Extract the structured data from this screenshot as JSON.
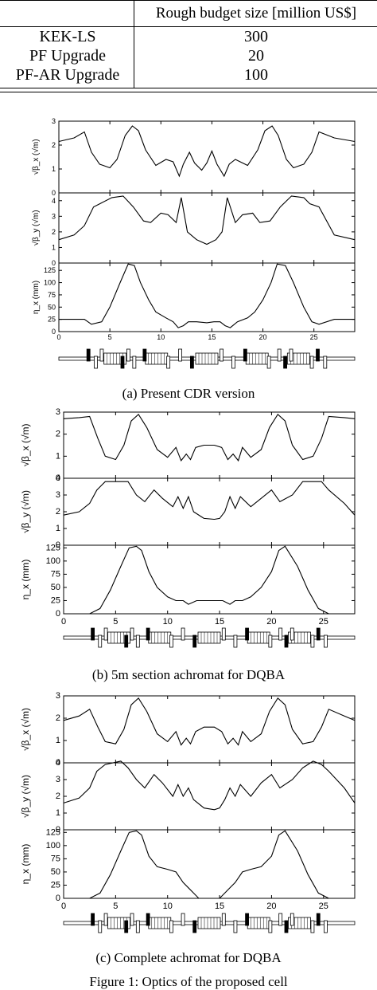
{
  "table": {
    "header": "Rough budget size [million US$]",
    "rows": [
      {
        "name": "KEK-LS",
        "value": "300"
      },
      {
        "name": "PF Upgrade",
        "value": "20"
      },
      {
        "name": "PF-AR Upgrade",
        "value": "100"
      }
    ]
  },
  "captions": {
    "a": "(a) Present CDR version",
    "b": "(b) 5m section achromat for DQBA",
    "c": "(c) Complete achromat for DQBA",
    "figure": "Figure 1: Optics of the proposed cell"
  },
  "chart_data": [
    {
      "id": "a",
      "type": "line",
      "title": "(a) Present CDR version",
      "xlabel": "",
      "xlim": [
        0,
        29
      ],
      "xticks": [
        0,
        5,
        10,
        15,
        20,
        25
      ],
      "panels": [
        {
          "ylabel": "√β_x (√m)",
          "ylim": [
            0,
            3
          ],
          "yticks": [
            0,
            1,
            2,
            3
          ],
          "x": [
            0,
            1.5,
            2.5,
            3.2,
            4,
            5,
            5.7,
            6.5,
            7.2,
            7.8,
            8.5,
            9.5,
            10.5,
            11.2,
            11.8,
            12.2,
            12.8,
            13.3,
            14,
            14.5,
            15,
            15.5,
            16.2,
            16.7,
            17.3,
            18.5,
            19.5,
            20.2,
            20.9,
            21.5,
            22.3,
            23,
            24,
            24.8,
            25.5,
            27,
            29
          ],
          "y": [
            2.15,
            2.3,
            2.55,
            1.7,
            1.2,
            1.05,
            1.4,
            2.4,
            2.8,
            2.6,
            1.8,
            1.15,
            1.4,
            1.3,
            0.7,
            1.2,
            1.7,
            1.25,
            0.95,
            1.25,
            1.75,
            1.2,
            0.7,
            1.2,
            1.4,
            1.15,
            1.8,
            2.6,
            2.8,
            2.4,
            1.4,
            1.05,
            1.2,
            1.7,
            2.55,
            2.3,
            2.15
          ]
        },
        {
          "ylabel": "√β_y (√m)",
          "ylim": [
            0,
            4.5
          ],
          "yticks": [
            0,
            1,
            2,
            3,
            4
          ],
          "x": [
            0,
            1.5,
            2.5,
            3.4,
            4,
            5.2,
            6.3,
            7.3,
            8.3,
            9,
            10,
            10.7,
            11.5,
            12,
            12.6,
            13.5,
            14.5,
            15.4,
            16,
            16.5,
            17.3,
            18,
            19,
            19.7,
            20.7,
            21.7,
            22.8,
            24,
            24.6,
            25.5,
            27,
            29
          ],
          "y": [
            1.5,
            1.8,
            2.4,
            3.6,
            3.8,
            4.2,
            4.3,
            3.6,
            2.7,
            2.6,
            3.2,
            3.1,
            2.6,
            4.2,
            2.0,
            1.5,
            1.2,
            1.5,
            2.0,
            4.2,
            2.6,
            3.1,
            3.2,
            2.6,
            2.7,
            3.6,
            4.3,
            4.2,
            3.8,
            3.6,
            1.8,
            1.5
          ]
        },
        {
          "ylabel": "η_x (mm)",
          "ylim": [
            0,
            140
          ],
          "yticks": [
            0,
            25,
            50,
            75,
            100,
            125
          ],
          "x": [
            0,
            2.5,
            3.2,
            4.2,
            5,
            6,
            6.8,
            7.4,
            8,
            8.8,
            9.5,
            10.5,
            11.2,
            11.7,
            12.2,
            12.7,
            13.5,
            14.5,
            15.2,
            15.8,
            16.3,
            16.8,
            17.5,
            18.5,
            19.2,
            20,
            20.8,
            21.4,
            22.2,
            23,
            24,
            24.8,
            25.5,
            27,
            29
          ],
          "y": [
            25,
            25,
            15,
            20,
            50,
            100,
            138,
            135,
            100,
            65,
            40,
            28,
            20,
            8,
            12,
            20,
            20,
            18,
            20,
            20,
            12,
            8,
            20,
            28,
            40,
            65,
            100,
            138,
            135,
            100,
            50,
            20,
            15,
            25,
            25
          ]
        }
      ]
    },
    {
      "id": "b",
      "type": "line",
      "title": "(b) 5m section achromat for DQBA",
      "xlabel": "",
      "xlim": [
        0,
        28
      ],
      "xticks": [
        0,
        5,
        10,
        15,
        20,
        25
      ],
      "panels": [
        {
          "ylabel": "√β_x (√m)",
          "ylim": [
            0,
            3
          ],
          "yticks": [
            0,
            1,
            2,
            3
          ],
          "x": [
            0,
            1.5,
            2.5,
            3.3,
            4,
            5,
            5.8,
            6.5,
            7.2,
            8,
            9,
            10,
            10.8,
            11.3,
            11.8,
            12.2,
            12.7,
            13.5,
            14.5,
            15.2,
            15.8,
            16.3,
            16.8,
            17.2,
            18,
            19,
            19.8,
            20.6,
            21.3,
            22,
            23,
            24,
            24.8,
            25.5,
            27,
            28
          ],
          "y": [
            2.7,
            2.75,
            2.8,
            1.8,
            1.0,
            0.85,
            1.5,
            2.6,
            2.9,
            2.3,
            1.3,
            0.95,
            1.4,
            0.8,
            1.1,
            0.85,
            1.4,
            1.5,
            1.5,
            1.4,
            0.85,
            1.1,
            0.8,
            1.4,
            0.95,
            1.3,
            2.3,
            2.9,
            2.6,
            1.5,
            0.85,
            1.0,
            1.8,
            2.8,
            2.75,
            2.7
          ]
        },
        {
          "ylabel": "√β_y (√m)",
          "ylim": [
            0,
            4
          ],
          "yticks": [
            0,
            1,
            2,
            3,
            4
          ],
          "x": [
            0,
            1.5,
            2.5,
            3.2,
            4,
            5.5,
            6.2,
            7,
            7.8,
            8.7,
            9.5,
            10.5,
            11,
            11.5,
            12,
            12.5,
            13.5,
            14.5,
            15,
            15.5,
            16,
            16.5,
            17,
            18,
            19,
            20,
            20.8,
            22,
            23,
            24,
            24.8,
            25.5,
            27,
            28
          ],
          "y": [
            1.8,
            2.0,
            2.5,
            3.3,
            3.8,
            3.8,
            3.8,
            3.0,
            2.6,
            3.3,
            2.8,
            2.3,
            2.9,
            2.2,
            2.9,
            2.0,
            1.6,
            1.55,
            1.6,
            2.0,
            2.9,
            2.2,
            2.9,
            2.3,
            2.8,
            3.3,
            2.6,
            3.0,
            3.8,
            3.8,
            3.8,
            3.3,
            2.5,
            1.8
          ]
        },
        {
          "ylabel": "η_x (mm)",
          "ylim": [
            0,
            130
          ],
          "yticks": [
            0,
            25,
            50,
            75,
            100,
            125
          ],
          "x": [
            0,
            2.5,
            3.5,
            4.5,
            5.5,
            6.3,
            7,
            7.5,
            8.2,
            9,
            10,
            10.8,
            11.5,
            12,
            12.8,
            13.5,
            14.5,
            15.3,
            16,
            16.5,
            17.2,
            18,
            19,
            20,
            20.7,
            21.3,
            22.5,
            23.5,
            24.5,
            25.5,
            28
          ],
          "y": [
            0,
            0,
            10,
            45,
            90,
            125,
            128,
            120,
            80,
            50,
            32,
            25,
            25,
            18,
            25,
            25,
            25,
            25,
            18,
            25,
            25,
            32,
            50,
            80,
            120,
            128,
            90,
            45,
            10,
            0,
            0
          ]
        }
      ]
    },
    {
      "id": "c",
      "type": "line",
      "title": "(c) Complete achromat for DQBA",
      "xlabel": "",
      "xlim": [
        0,
        28
      ],
      "xticks": [
        0,
        5,
        10,
        15,
        20,
        25
      ],
      "panels": [
        {
          "ylabel": "√β_x (√m)",
          "ylim": [
            0,
            3
          ],
          "yticks": [
            0,
            1,
            2,
            3
          ],
          "x": [
            0,
            1.5,
            2.5,
            3.3,
            4,
            5,
            5.8,
            6.5,
            7.2,
            8,
            9,
            10,
            10.8,
            11.3,
            11.8,
            12.2,
            12.7,
            13.5,
            14.5,
            15.2,
            15.8,
            16.3,
            16.8,
            17.2,
            18,
            19,
            19.8,
            20.6,
            21.3,
            22,
            23,
            24,
            24.8,
            25.5,
            27,
            28
          ],
          "y": [
            1.9,
            2.1,
            2.4,
            1.6,
            0.95,
            0.85,
            1.5,
            2.6,
            2.9,
            2.3,
            1.3,
            0.95,
            1.4,
            0.8,
            1.1,
            0.85,
            1.4,
            1.6,
            1.6,
            1.4,
            0.85,
            1.1,
            0.8,
            1.4,
            0.95,
            1.3,
            2.3,
            2.9,
            2.6,
            1.5,
            0.85,
            0.95,
            1.6,
            2.4,
            2.1,
            1.9
          ]
        },
        {
          "ylabel": "√β_y (√m)",
          "ylim": [
            0,
            4
          ],
          "yticks": [
            0,
            1,
            2,
            3,
            4
          ],
          "x": [
            0,
            1.5,
            2.5,
            3.2,
            4,
            5.5,
            6.2,
            7,
            7.8,
            8.7,
            9.5,
            10.5,
            11,
            11.5,
            12,
            12.5,
            13.5,
            14.5,
            15,
            15.5,
            16,
            16.5,
            17,
            18,
            19,
            20,
            20.8,
            22,
            23,
            24,
            24.8,
            25.5,
            27,
            28
          ],
          "y": [
            1.6,
            1.9,
            2.5,
            3.5,
            3.9,
            4.1,
            3.7,
            3.0,
            2.5,
            3.3,
            2.8,
            2.0,
            2.7,
            2.0,
            2.5,
            1.8,
            1.3,
            1.2,
            1.3,
            1.8,
            2.5,
            2.0,
            2.7,
            2.0,
            2.8,
            3.3,
            2.5,
            3.0,
            3.7,
            4.1,
            3.9,
            3.5,
            2.5,
            1.6
          ]
        },
        {
          "ylabel": "η_x (mm)",
          "ylim": [
            0,
            130
          ],
          "yticks": [
            0,
            25,
            50,
            75,
            100,
            125
          ],
          "x": [
            0,
            2.5,
            3.5,
            4.5,
            5.5,
            6.3,
            7,
            7.5,
            8.2,
            9,
            10,
            10.8,
            11.5,
            12,
            12.5,
            13,
            15,
            15.5,
            16,
            16.5,
            17.2,
            18,
            19,
            20,
            20.7,
            21.3,
            22.5,
            23.5,
            24.5,
            25.5,
            28
          ],
          "y": [
            0,
            0,
            10,
            45,
            90,
            125,
            128,
            120,
            80,
            60,
            55,
            50,
            30,
            20,
            10,
            0,
            0,
            10,
            20,
            30,
            50,
            55,
            60,
            80,
            120,
            128,
            90,
            45,
            10,
            0,
            0
          ]
        }
      ]
    }
  ]
}
